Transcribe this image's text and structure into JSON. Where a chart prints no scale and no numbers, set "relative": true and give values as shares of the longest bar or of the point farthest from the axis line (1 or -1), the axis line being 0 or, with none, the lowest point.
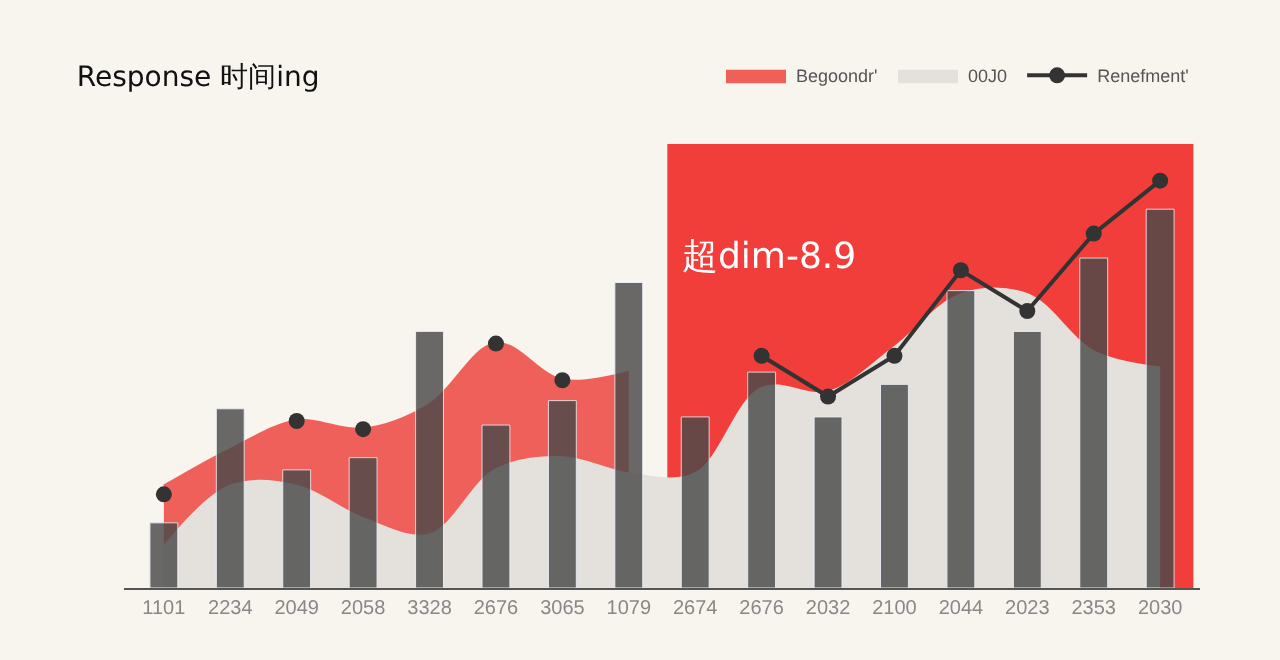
{
  "chart_data": {
    "type": "bar",
    "title": "Response 时间ing",
    "relative": true,
    "categories": [
      "1101",
      "2234",
      "2049",
      "2058",
      "3328",
      "2676",
      "3065",
      "1079",
      "2674",
      "2676",
      "2032",
      "2100",
      "2044",
      "2023",
      "2353",
      "2030"
    ],
    "series": [
      {
        "name": "Begoondr'",
        "type": "area",
        "color": "#f0605a",
        "values": [
          0.25,
          0.34,
          0.41,
          0.39,
          0.45,
          0.6,
          0.51,
          0.53,
          null,
          null,
          null,
          null,
          null,
          null,
          null,
          null
        ]
      },
      {
        "name": "00J0",
        "type": "area",
        "color": "#e4e1dc",
        "values": [
          0.1,
          0.25,
          0.25,
          0.17,
          0.13,
          0.29,
          0.32,
          0.28,
          0.28,
          0.49,
          0.48,
          0.59,
          0.72,
          0.72,
          0.58,
          0.54
        ]
      },
      {
        "color": "#4a4a4a",
        "values": [
          0.16,
          0.44,
          0.29,
          0.32,
          0.63,
          0.4,
          0.46,
          0.75,
          0.42,
          0.53,
          0.42,
          0.5,
          0.73,
          0.63,
          0.81,
          0.93
        ]
      },
      {
        "type": "scatter",
        "color": "#333333",
        "marker": "circle",
        "values": [
          0.23,
          null,
          0.41,
          0.39,
          null,
          0.6,
          0.51,
          null,
          null,
          null,
          null,
          null,
          null,
          null,
          null,
          null
        ]
      },
      {
        "name": "Renefment'",
        "type": "line",
        "color": "#333333",
        "marker": "circle",
        "values": [
          null,
          null,
          null,
          null,
          null,
          null,
          null,
          null,
          null,
          0.57,
          0.47,
          0.57,
          0.78,
          0.68,
          0.87,
          1
        ]
      }
    ],
    "bands": [
      {
        "axis": "x",
        "from": "2674",
        "to": "2030",
        "color": "#f23e3a"
      }
    ],
    "annotations": [
      "超dim-8.9"
    ],
    "legend": "top right"
  }
}
